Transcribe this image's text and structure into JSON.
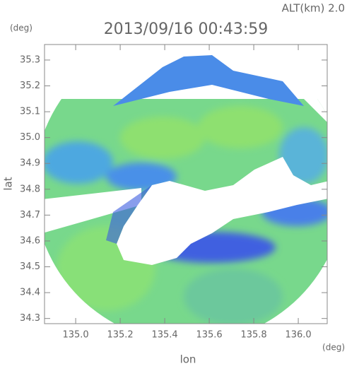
{
  "chart_data": {
    "type": "image",
    "altitude_label": "ALT(km) 2.0",
    "title": "2013/09/16 00:43:59",
    "y_unit": "(deg)",
    "x_unit": "(deg)",
    "xlabel": "lon",
    "ylabel": "lat",
    "xlim": [
      134.86,
      136.13
    ],
    "ylim": [
      34.28,
      35.36
    ],
    "xticks": [
      {
        "value": 135,
        "label": "135.0"
      },
      135.2,
      135.4,
      135.6,
      135.8,
      {
        "value": 136,
        "label": "136.0"
      }
    ],
    "yticks": [
      34.3,
      34.4,
      34.5,
      34.6,
      34.7,
      34.8,
      34.9,
      {
        "value": 35,
        "label": "35.0"
      },
      35.1,
      35.2,
      35.3
    ]
  }
}
